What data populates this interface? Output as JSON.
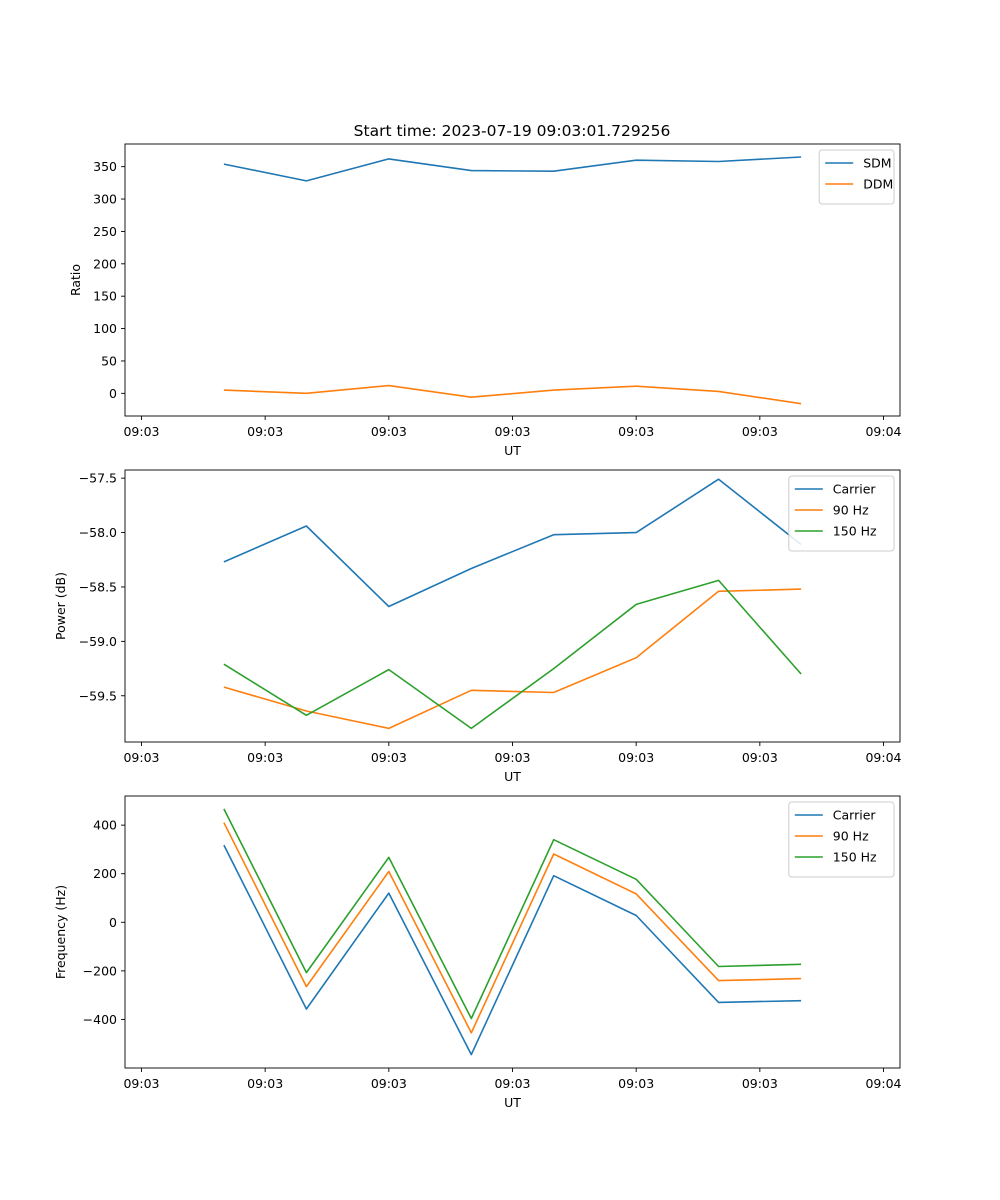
{
  "figure_title": "Start time: 2023-07-19 09:03:01.729256",
  "colors": {
    "blue": "#1f77b4",
    "orange": "#ff7f0e",
    "green": "#2ca02c"
  },
  "chart_data": [
    {
      "type": "line",
      "title": "Start time: 2023-07-19 09:03:01.729256",
      "xlabel": "UT",
      "ylabel": "Ratio",
      "x": [
        0.5,
        1,
        1.5,
        2,
        2.5,
        3,
        3.5,
        4
      ],
      "xlim": [
        -0.1,
        4.6
      ],
      "xticks": [
        0,
        0.75,
        1.5,
        2.25,
        3,
        3.75,
        4.5
      ],
      "xtick_labels": [
        "09:03",
        "09:03",
        "09:03",
        "09:03",
        "09:03",
        "09:03",
        "09:04"
      ],
      "ylim": [
        -35,
        385
      ],
      "yticks": [
        0,
        50,
        100,
        150,
        200,
        250,
        300,
        350
      ],
      "ytick_labels": [
        "0",
        "50",
        "100",
        "150",
        "200",
        "250",
        "300",
        "350"
      ],
      "legend": "top-right",
      "grid": false,
      "series": [
        {
          "name": "SDM",
          "color": "#1f77b4",
          "values": [
            354,
            328,
            362,
            344,
            343,
            360,
            358,
            365
          ]
        },
        {
          "name": "DDM",
          "color": "#ff7f0e",
          "values": [
            5,
            0,
            12,
            -6,
            5,
            11,
            3,
            -16
          ]
        }
      ]
    },
    {
      "type": "line",
      "title": "",
      "xlabel": "UT",
      "ylabel": "Power (dB)",
      "x": [
        0.5,
        1,
        1.5,
        2,
        2.5,
        3,
        3.5,
        4
      ],
      "xlim": [
        -0.1,
        4.6
      ],
      "xticks": [
        0,
        0.75,
        1.5,
        2.25,
        3,
        3.75,
        4.5
      ],
      "xtick_labels": [
        "09:03",
        "09:03",
        "09:03",
        "09:03",
        "09:03",
        "09:03",
        "09:04"
      ],
      "ylim": [
        -59.925,
        -57.425
      ],
      "yticks": [
        -59.5,
        -59.0,
        -58.5,
        -58.0,
        -57.5
      ],
      "ytick_labels": [
        "−59.5",
        "−59.0",
        "−58.5",
        "−58.0",
        "−57.5"
      ],
      "legend": "top-right",
      "grid": false,
      "series": [
        {
          "name": "Carrier",
          "color": "#1f77b4",
          "values": [
            -58.27,
            -57.94,
            -58.68,
            -58.33,
            -58.02,
            -58.0,
            -57.51,
            -58.11
          ]
        },
        {
          "name": "90 Hz",
          "color": "#ff7f0e",
          "values": [
            -59.42,
            -59.64,
            -59.8,
            -59.45,
            -59.47,
            -59.15,
            -58.54,
            -58.52
          ]
        },
        {
          "name": "150 Hz",
          "color": "#2ca02c",
          "values": [
            -59.21,
            -59.68,
            -59.26,
            -59.8,
            -59.25,
            -58.66,
            -58.44,
            -59.3
          ]
        }
      ]
    },
    {
      "type": "line",
      "title": "",
      "xlabel": "UT",
      "ylabel": "Frequency (Hz)",
      "x": [
        0.5,
        1,
        1.5,
        2,
        2.5,
        3,
        3.5,
        4
      ],
      "xlim": [
        -0.1,
        4.6
      ],
      "xticks": [
        0,
        0.75,
        1.5,
        2.25,
        3,
        3.75,
        4.5
      ],
      "xtick_labels": [
        "09:03",
        "09:03",
        "09:03",
        "09:03",
        "09:03",
        "09:03",
        "09:04"
      ],
      "ylim": [
        -600,
        520
      ],
      "yticks": [
        -400,
        -200,
        0,
        200,
        400
      ],
      "ytick_labels": [
        "−400",
        "−200",
        "0",
        "200",
        "400"
      ],
      "legend": "top-right",
      "grid": false,
      "series": [
        {
          "name": "Carrier",
          "color": "#1f77b4",
          "values": [
            318,
            -357,
            120,
            -545,
            192,
            28,
            -330,
            -323
          ]
        },
        {
          "name": "90 Hz",
          "color": "#ff7f0e",
          "values": [
            410,
            -265,
            209,
            -455,
            281,
            117,
            -240,
            -232
          ]
        },
        {
          "name": "150 Hz",
          "color": "#2ca02c",
          "values": [
            467,
            -207,
            267,
            -396,
            340,
            177,
            -182,
            -173
          ]
        }
      ]
    }
  ]
}
